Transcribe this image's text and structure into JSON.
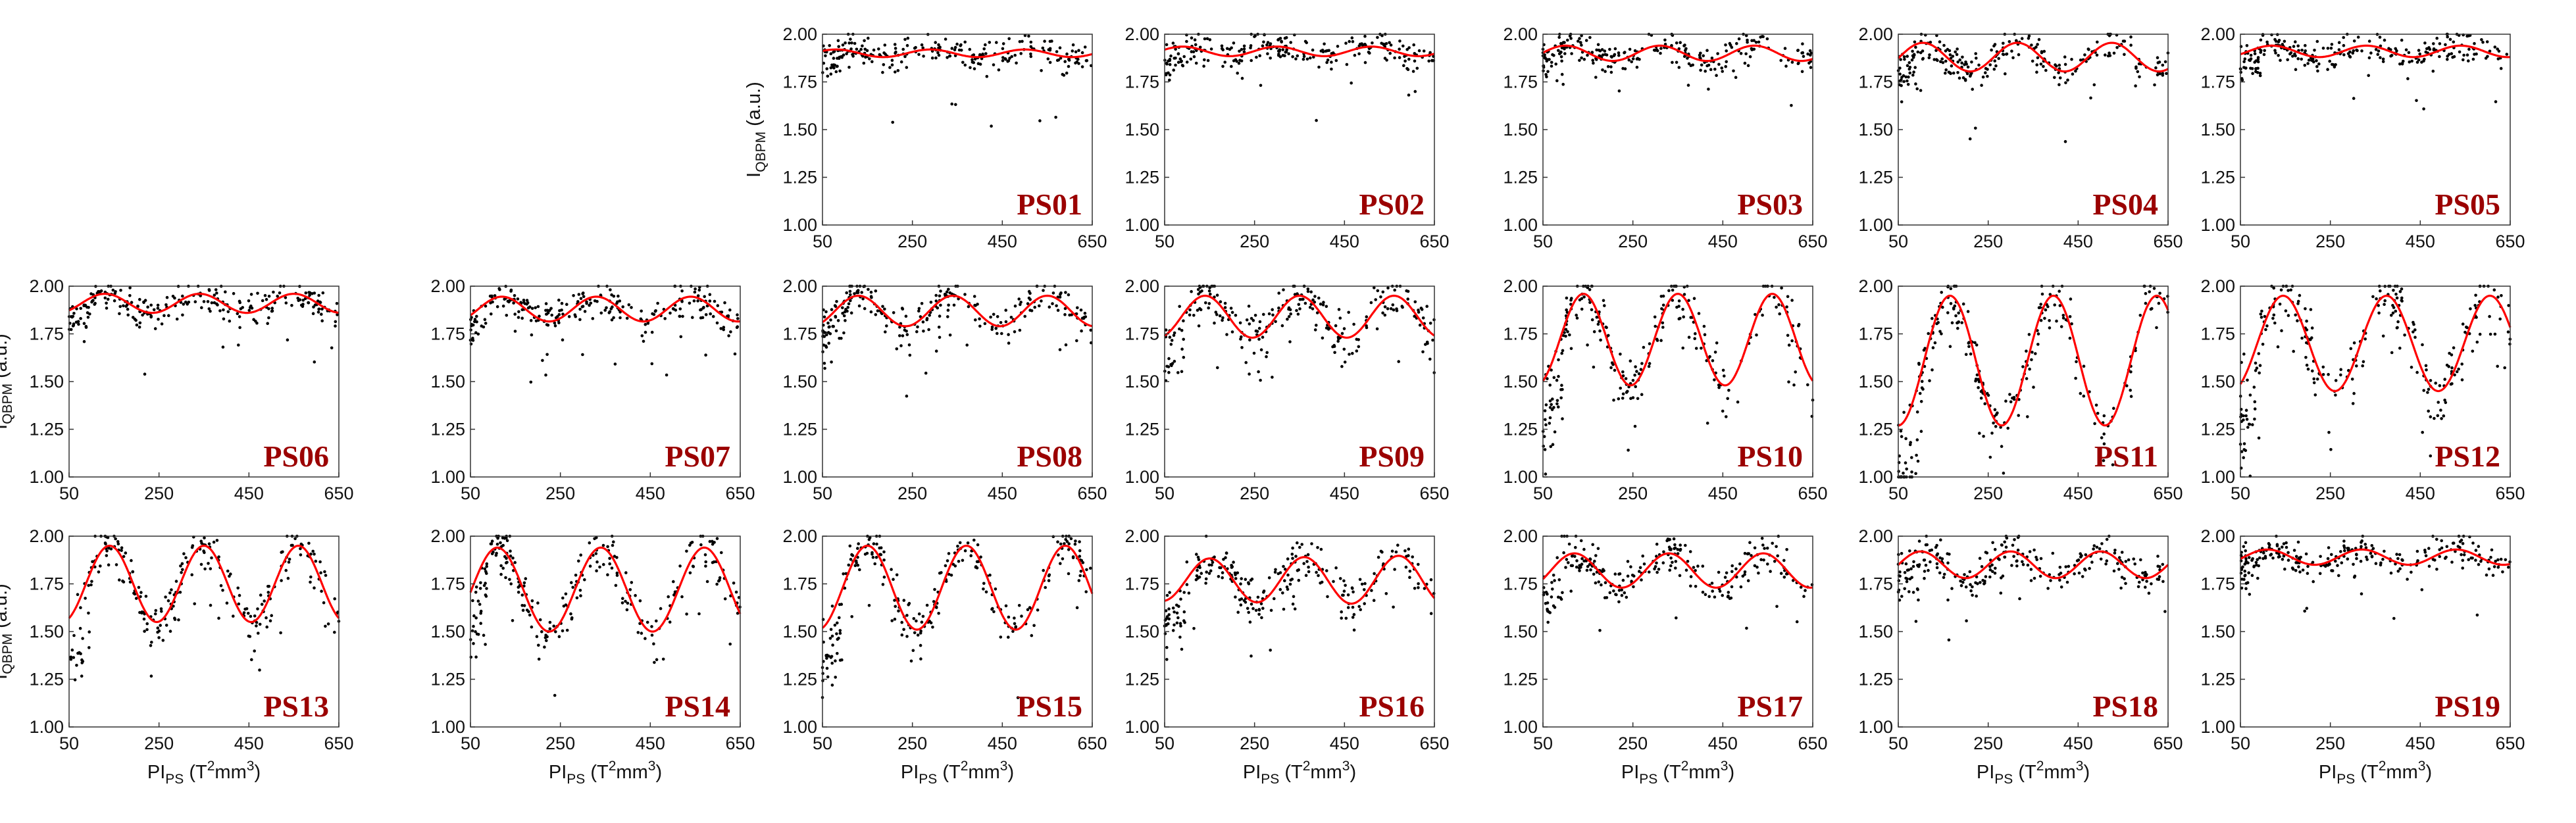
{
  "figure": {
    "x_axis_label": {
      "base": "PI",
      "sub": "PS",
      "unit_pre": " (T",
      "unit_sup1": "2",
      "unit_mid": "mm",
      "unit_sup2": "3",
      "unit_post": ")"
    },
    "y_axis_label": {
      "base": "I",
      "sub": "QBPM",
      "unit": " (a.u.)"
    }
  },
  "colors": {
    "fit": "#ff0000",
    "points": "#000000",
    "label": "#9b0000",
    "axis": "#333333"
  },
  "chart_data": [
    {
      "type": "scatter",
      "panel": "PS01",
      "title": "PS01",
      "row": 0,
      "col": 2,
      "xlim": [
        50,
        650
      ],
      "ylim": [
        1.0,
        2.0
      ],
      "xticks": [
        50,
        250,
        450,
        650
      ],
      "yticks": [
        1.0,
        1.25,
        1.5,
        1.75,
        2.0
      ],
      "ytick_labels": [
        "1.00",
        "1.25",
        "1.50",
        "1.75",
        "2.00"
      ],
      "show_xticklabels": true,
      "show_yticklabels": true,
      "show_ylabel": true,
      "show_xlabel": false,
      "fit": {
        "mean": 1.9,
        "amp": 0.02,
        "period": 210,
        "peak_x": 80,
        "amp_growth": 0
      },
      "scatter": {
        "spread": 0.04,
        "outliers": 6
      }
    },
    {
      "type": "scatter",
      "panel": "PS02",
      "title": "PS02",
      "row": 0,
      "col": 3,
      "xlim": [
        50,
        650
      ],
      "ylim": [
        1.0,
        2.0
      ],
      "xticks": [
        50,
        250,
        450,
        650
      ],
      "yticks": [
        1.0,
        1.25,
        1.5,
        1.75,
        2.0
      ],
      "ytick_labels": [
        "1.00",
        "1.25",
        "1.50",
        "1.75",
        "2.00"
      ],
      "show_xticklabels": true,
      "show_yticklabels": true,
      "show_ylabel": false,
      "show_xlabel": false,
      "fit": {
        "mean": 1.91,
        "amp": 0.025,
        "period": 210,
        "peak_x": 90,
        "amp_growth": 0
      },
      "scatter": {
        "spread": 0.04,
        "outliers": 6
      }
    },
    {
      "type": "scatter",
      "panel": "PS03",
      "title": "PS03",
      "row": 0,
      "col": 4,
      "xlim": [
        50,
        650
      ],
      "ylim": [
        1.0,
        2.0
      ],
      "xticks": [
        50,
        250,
        450,
        650
      ],
      "yticks": [
        1.0,
        1.25,
        1.5,
        1.75,
        2.0
      ],
      "ytick_labels": [
        "1.00",
        "1.25",
        "1.50",
        "1.75",
        "2.00"
      ],
      "show_xticklabels": true,
      "show_yticklabels": true,
      "show_ylabel": false,
      "show_xlabel": false,
      "fit": {
        "mean": 1.9,
        "amp": 0.04,
        "period": 210,
        "peak_x": 100,
        "amp_growth": 0
      },
      "scatter": {
        "spread": 0.04,
        "outliers": 6
      }
    },
    {
      "type": "scatter",
      "panel": "PS04",
      "title": "PS04",
      "row": 0,
      "col": 5,
      "xlim": [
        50,
        650
      ],
      "ylim": [
        1.0,
        2.0
      ],
      "xticks": [
        50,
        250,
        450,
        650
      ],
      "yticks": [
        1.0,
        1.25,
        1.5,
        1.75,
        2.0
      ],
      "ytick_labels": [
        "1.00",
        "1.25",
        "1.50",
        "1.75",
        "2.00"
      ],
      "show_xticklabels": true,
      "show_yticklabels": true,
      "show_ylabel": false,
      "show_xlabel": false,
      "fit": {
        "mean": 1.88,
        "amp": 0.075,
        "period": 210,
        "peak_x": 105,
        "amp_growth": 0
      },
      "scatter": {
        "spread": 0.045,
        "outliers": 8
      }
    },
    {
      "type": "scatter",
      "panel": "PS05",
      "title": "PS05",
      "row": 0,
      "col": 6,
      "xlim": [
        50,
        650
      ],
      "ylim": [
        1.0,
        2.0
      ],
      "xticks": [
        50,
        250,
        450,
        650
      ],
      "yticks": [
        1.0,
        1.25,
        1.5,
        1.75,
        2.0
      ],
      "ytick_labels": [
        "1.00",
        "1.25",
        "1.50",
        "1.75",
        "2.00"
      ],
      "show_xticklabels": true,
      "show_yticklabels": true,
      "show_ylabel": false,
      "show_xlabel": false,
      "fit": {
        "mean": 1.91,
        "amp": 0.03,
        "period": 210,
        "peak_x": 120,
        "amp_growth": 0
      },
      "scatter": {
        "spread": 0.04,
        "outliers": 6
      }
    },
    {
      "type": "scatter",
      "panel": "PS06",
      "title": "PS06",
      "row": 1,
      "col": 0,
      "xlim": [
        50,
        650
      ],
      "ylim": [
        1.0,
        2.0
      ],
      "xticks": [
        50,
        250,
        450,
        650
      ],
      "yticks": [
        1.0,
        1.25,
        1.5,
        1.75,
        2.0
      ],
      "ytick_labels": [
        "1.00",
        "1.25",
        "1.50",
        "1.75",
        "2.00"
      ],
      "show_xticklabels": true,
      "show_yticklabels": true,
      "show_ylabel": true,
      "show_xlabel": false,
      "fit": {
        "mean": 1.91,
        "amp": 0.05,
        "period": 210,
        "peak_x": 130,
        "amp_growth": 0
      },
      "scatter": {
        "spread": 0.04,
        "outliers": 6
      }
    },
    {
      "type": "scatter",
      "panel": "PS07",
      "title": "PS07",
      "row": 1,
      "col": 1,
      "xlim": [
        50,
        650
      ],
      "ylim": [
        1.0,
        2.0
      ],
      "xticks": [
        50,
        250,
        450,
        650
      ],
      "yticks": [
        1.0,
        1.25,
        1.5,
        1.75,
        2.0
      ],
      "ytick_labels": [
        "1.00",
        "1.25",
        "1.50",
        "1.75",
        "2.00"
      ],
      "show_xticklabels": true,
      "show_yticklabels": true,
      "show_ylabel": false,
      "show_xlabel": false,
      "fit": {
        "mean": 1.88,
        "amp": 0.065,
        "period": 210,
        "peak_x": 120,
        "amp_growth": 0
      },
      "scatter": {
        "spread": 0.05,
        "outliers": 12
      }
    },
    {
      "type": "scatter",
      "panel": "PS08",
      "title": "PS08",
      "row": 1,
      "col": 2,
      "xlim": [
        50,
        650
      ],
      "ylim": [
        1.0,
        2.0
      ],
      "xticks": [
        50,
        250,
        450,
        650
      ],
      "yticks": [
        1.0,
        1.25,
        1.5,
        1.75,
        2.0
      ],
      "ytick_labels": [
        "1.00",
        "1.25",
        "1.50",
        "1.75",
        "2.00"
      ],
      "show_xticklabels": true,
      "show_yticklabels": true,
      "show_ylabel": false,
      "show_xlabel": false,
      "fit": {
        "mean": 1.87,
        "amp": 0.08,
        "period": 210,
        "peak_x": 130,
        "amp_growth": 0
      },
      "scatter": {
        "spread": 0.05,
        "outliers": 10
      }
    },
    {
      "type": "scatter",
      "panel": "PS09",
      "title": "PS09",
      "row": 1,
      "col": 3,
      "xlim": [
        50,
        650
      ],
      "ylim": [
        1.0,
        2.0
      ],
      "xticks": [
        50,
        250,
        450,
        650
      ],
      "yticks": [
        1.0,
        1.25,
        1.5,
        1.75,
        2.0
      ],
      "ytick_labels": [
        "1.00",
        "1.25",
        "1.50",
        "1.75",
        "2.00"
      ],
      "show_xticklabels": true,
      "show_yticklabels": true,
      "show_ylabel": false,
      "show_xlabel": false,
      "fit": {
        "mean": 1.84,
        "amp": 0.11,
        "period": 210,
        "peak_x": 140,
        "amp_growth": 0
      },
      "scatter": {
        "spread": 0.06,
        "outliers": 12
      }
    },
    {
      "type": "scatter",
      "panel": "PS10",
      "title": "PS10",
      "row": 1,
      "col": 4,
      "xlim": [
        50,
        650
      ],
      "ylim": [
        1.0,
        2.0
      ],
      "xticks": [
        50,
        250,
        450,
        650
      ],
      "yticks": [
        1.0,
        1.25,
        1.5,
        1.75,
        2.0
      ],
      "ytick_labels": [
        "1.00",
        "1.25",
        "1.50",
        "1.75",
        "2.00"
      ],
      "show_xticklabels": true,
      "show_yticklabels": true,
      "show_ylabel": false,
      "show_xlabel": false,
      "fit": {
        "mean": 1.72,
        "amp": 0.24,
        "period": 210,
        "peak_x": 140,
        "amp_growth": 0
      },
      "scatter": {
        "spread": 0.07,
        "outliers": 14
      }
    },
    {
      "type": "scatter",
      "panel": "PS11",
      "title": "PS11",
      "row": 1,
      "col": 5,
      "xlim": [
        50,
        650
      ],
      "ylim": [
        1.0,
        2.0
      ],
      "xticks": [
        50,
        250,
        450,
        650
      ],
      "yticks": [
        1.0,
        1.25,
        1.5,
        1.75,
        2.0
      ],
      "ytick_labels": [
        "1.00",
        "1.25",
        "1.50",
        "1.75",
        "2.00"
      ],
      "show_xticklabels": true,
      "show_yticklabels": true,
      "show_ylabel": false,
      "show_xlabel": false,
      "fit": {
        "mean": 1.61,
        "amp": 0.34,
        "period": 230,
        "peak_x": 165,
        "amp_growth": 0
      },
      "scatter": {
        "spread": 0.08,
        "outliers": 14
      }
    },
    {
      "type": "scatter",
      "panel": "PS12",
      "title": "PS12",
      "row": 1,
      "col": 6,
      "xlim": [
        50,
        650
      ],
      "ylim": [
        1.0,
        2.0
      ],
      "xticks": [
        50,
        250,
        450,
        650
      ],
      "yticks": [
        1.0,
        1.25,
        1.5,
        1.75,
        2.0
      ],
      "ytick_labels": [
        "1.00",
        "1.25",
        "1.50",
        "1.75",
        "2.00"
      ],
      "show_xticklabels": true,
      "show_yticklabels": true,
      "show_ylabel": false,
      "show_xlabel": false,
      "fit": {
        "mean": 1.7,
        "amp": 0.25,
        "period": 230,
        "peak_x": 145,
        "amp_growth": 0
      },
      "scatter": {
        "spread": 0.08,
        "outliers": 14
      }
    },
    {
      "type": "scatter",
      "panel": "PS13",
      "title": "PS13",
      "row": 2,
      "col": 0,
      "xlim": [
        50,
        650
      ],
      "ylim": [
        1.0,
        2.0
      ],
      "xticks": [
        50,
        250,
        450,
        650
      ],
      "yticks": [
        1.0,
        1.25,
        1.5,
        1.75,
        2.0
      ],
      "ytick_labels": [
        "1.00",
        "1.25",
        "1.50",
        "1.75",
        "2.00"
      ],
      "show_xticklabels": true,
      "show_yticklabels": true,
      "show_ylabel": true,
      "show_xlabel": true,
      "fit": {
        "mean": 1.75,
        "amp": 0.2,
        "period": 210,
        "peak_x": 140,
        "amp_growth": 0
      },
      "scatter": {
        "spread": 0.06,
        "outliers": 10
      }
    },
    {
      "type": "scatter",
      "panel": "PS14",
      "title": "PS14",
      "row": 2,
      "col": 1,
      "xlim": [
        50,
        650
      ],
      "ylim": [
        1.0,
        2.0
      ],
      "xticks": [
        50,
        250,
        450,
        650
      ],
      "yticks": [
        1.0,
        1.25,
        1.5,
        1.75,
        2.0
      ],
      "ytick_labels": [
        "1.00",
        "1.25",
        "1.50",
        "1.75",
        "2.00"
      ],
      "show_xticklabels": true,
      "show_yticklabels": true,
      "show_ylabel": false,
      "show_xlabel": true,
      "fit": {
        "mean": 1.72,
        "amp": 0.22,
        "period": 230,
        "peak_x": 110,
        "amp_growth": 0
      },
      "scatter": {
        "spread": 0.06,
        "outliers": 10
      }
    },
    {
      "type": "scatter",
      "panel": "PS15",
      "title": "PS15",
      "row": 2,
      "col": 2,
      "xlim": [
        50,
        650
      ],
      "ylim": [
        1.0,
        2.0
      ],
      "xticks": [
        50,
        250,
        450,
        650
      ],
      "yticks": [
        1.0,
        1.25,
        1.5,
        1.75,
        2.0
      ],
      "ytick_labels": [
        "1.00",
        "1.25",
        "1.50",
        "1.75",
        "2.00"
      ],
      "show_xticklabels": true,
      "show_yticklabels": true,
      "show_ylabel": false,
      "show_xlabel": true,
      "fit": {
        "mean": 1.73,
        "amp": 0.22,
        "period": 220,
        "peak_x": 150,
        "amp_growth": 0
      },
      "scatter": {
        "spread": 0.06,
        "outliers": 10
      }
    },
    {
      "type": "scatter",
      "panel": "PS16",
      "title": "PS16",
      "row": 2,
      "col": 3,
      "xlim": [
        50,
        650
      ],
      "ylim": [
        1.0,
        2.0
      ],
      "xticks": [
        50,
        250,
        450,
        650
      ],
      "yticks": [
        1.0,
        1.25,
        1.5,
        1.75,
        2.0
      ],
      "ytick_labels": [
        "1.00",
        "1.25",
        "1.50",
        "1.75",
        "2.00"
      ],
      "show_xticklabels": true,
      "show_yticklabels": true,
      "show_ylabel": false,
      "show_xlabel": true,
      "fit": {
        "mean": 1.77,
        "amp": 0.11,
        "period": 210,
        "peak_x": 150,
        "amp_growth": 0.0003
      },
      "scatter": {
        "spread": 0.06,
        "outliers": 10
      }
    },
    {
      "type": "scatter",
      "panel": "PS17",
      "title": "PS17",
      "row": 2,
      "col": 4,
      "xlim": [
        50,
        650
      ],
      "ylim": [
        1.0,
        2.0
      ],
      "xticks": [
        50,
        250,
        450,
        650
      ],
      "yticks": [
        1.0,
        1.25,
        1.5,
        1.75,
        2.0
      ],
      "ytick_labels": [
        "1.00",
        "1.25",
        "1.50",
        "1.75",
        "2.00"
      ],
      "show_xticklabels": true,
      "show_yticklabels": true,
      "show_ylabel": false,
      "show_xlabel": true,
      "fit": {
        "mean": 1.82,
        "amp": 0.09,
        "period": 210,
        "peak_x": 120,
        "amp_growth": 0
      },
      "scatter": {
        "spread": 0.05,
        "outliers": 8
      }
    },
    {
      "type": "scatter",
      "panel": "PS18",
      "title": "PS18",
      "row": 2,
      "col": 5,
      "xlim": [
        50,
        650
      ],
      "ylim": [
        1.0,
        2.0
      ],
      "xticks": [
        50,
        250,
        450,
        650
      ],
      "yticks": [
        1.0,
        1.25,
        1.5,
        1.75,
        2.0
      ],
      "ytick_labels": [
        "1.00",
        "1.25",
        "1.50",
        "1.75",
        "2.00"
      ],
      "show_xticklabels": true,
      "show_yticklabels": true,
      "show_ylabel": false,
      "show_xlabel": true,
      "fit": {
        "mean": 1.85,
        "amp": 0.07,
        "period": 200,
        "peak_x": 100,
        "amp_growth": 0
      },
      "scatter": {
        "spread": 0.05,
        "outliers": 8
      }
    },
    {
      "type": "scatter",
      "panel": "PS19",
      "title": "PS19",
      "row": 2,
      "col": 6,
      "xlim": [
        50,
        650
      ],
      "ylim": [
        1.0,
        2.0
      ],
      "xticks": [
        50,
        250,
        450,
        650
      ],
      "yticks": [
        1.0,
        1.25,
        1.5,
        1.75,
        2.0
      ],
      "ytick_labels": [
        "1.00",
        "1.25",
        "1.50",
        "1.75",
        "2.00"
      ],
      "show_xticklabels": true,
      "show_yticklabels": true,
      "show_ylabel": false,
      "show_xlabel": true,
      "fit": {
        "mean": 1.89,
        "amp": 0.04,
        "period": 210,
        "peak_x": 110,
        "amp_growth": 0
      },
      "scatter": {
        "spread": 0.04,
        "outliers": 8
      }
    }
  ]
}
